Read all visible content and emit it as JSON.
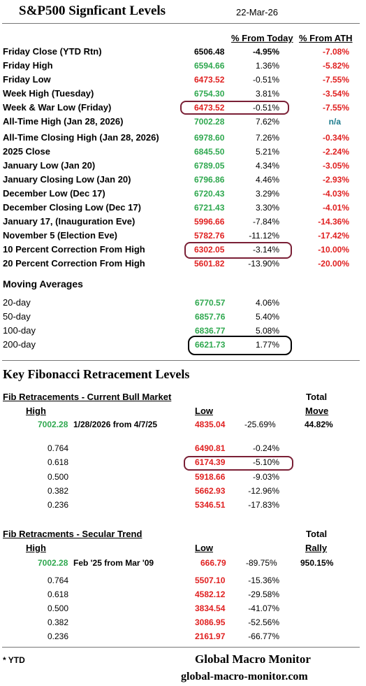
{
  "header": {
    "title": "S&P500 Signficant Levels",
    "date": "22-Mar-26",
    "col_today": "% From Today",
    "col_ath": "% From ATH"
  },
  "levels": [
    {
      "label": "Friday Close (YTD Rtn)",
      "value": "6506.48",
      "today": "-4.95%",
      "ath": "-7.08%",
      "vc": "k",
      "tc": "k",
      "ac": "r",
      "tb": true
    },
    {
      "label": "Friday High",
      "value": "6594.66",
      "today": "1.36%",
      "ath": "-5.82%",
      "vc": "g",
      "tc": "k",
      "ac": "r",
      "tb": false
    },
    {
      "label": "Friday Low",
      "value": "6473.52",
      "today": "-0.51%",
      "ath": "-7.55%",
      "vc": "r",
      "tc": "k",
      "ac": "r",
      "tb": false
    },
    {
      "label": "Week High (Tuesday)",
      "value": "6754.30",
      "today": "3.81%",
      "ath": "-3.54%",
      "vc": "g",
      "tc": "k",
      "ac": "r",
      "tb": false
    },
    {
      "label": "Week & War Low (Friday)",
      "value": "6473.52",
      "today": "-0.51%",
      "ath": "-7.55%",
      "vc": "r",
      "tc": "k",
      "ac": "r",
      "tb": false
    },
    {
      "label": "All-Time High (Jan 28, 2026)",
      "value": "7002.28",
      "today": "7.62%",
      "ath": "n/a",
      "vc": "g",
      "tc": "k",
      "ac": "teal",
      "tb": false
    },
    {
      "label": "All-Time Closing High (Jan 28, 2026)",
      "value": "6978.60",
      "today": "7.26%",
      "ath": "-0.34%",
      "vc": "g",
      "tc": "k",
      "ac": "r",
      "tb": false
    },
    {
      "label": "2025 Close",
      "value": "6845.50",
      "today": "5.21%",
      "ath": "-2.24%",
      "vc": "g",
      "tc": "k",
      "ac": "r",
      "tb": false
    },
    {
      "label": "January Low (Jan 20)",
      "value": "6789.05",
      "today": "4.34%",
      "ath": "-3.05%",
      "vc": "g",
      "tc": "k",
      "ac": "r",
      "tb": false
    },
    {
      "label": "January Closing Low (Jan 20)",
      "value": "6796.86",
      "today": "4.46%",
      "ath": "-2.93%",
      "vc": "g",
      "tc": "k",
      "ac": "r",
      "tb": false
    },
    {
      "label": "December Low (Dec 17)",
      "value": "6720.43",
      "today": "3.29%",
      "ath": "-4.03%",
      "vc": "g",
      "tc": "k",
      "ac": "r",
      "tb": false
    },
    {
      "label": "December Closing Low (Dec 17)",
      "value": "6721.43",
      "today": "3.30%",
      "ath": "-4.01%",
      "vc": "g",
      "tc": "k",
      "ac": "r",
      "tb": false
    },
    {
      "label": "January 17, (Inauguration Eve)",
      "value": "5996.66",
      "today": "-7.84%",
      "ath": "-14.36%",
      "vc": "r",
      "tc": "k",
      "ac": "r",
      "tb": false
    },
    {
      "label": "November 5 (Election Eve)",
      "value": "5782.76",
      "today": "-11.12%",
      "ath": "-17.42%",
      "vc": "r",
      "tc": "k",
      "ac": "r",
      "tb": false
    },
    {
      "label": "10 Percent Correction From High",
      "value": "6302.05",
      "today": "-3.14%",
      "ath": "-10.00%",
      "vc": "r",
      "tc": "k",
      "ac": "r",
      "tb": false
    },
    {
      "label": "20 Percent Correction From High",
      "value": "5601.82",
      "today": "-13.90%",
      "ath": "-20.00%",
      "vc": "r",
      "tc": "k",
      "ac": "r",
      "tb": false
    }
  ],
  "ma": {
    "title": "Moving Averages",
    "rows": [
      {
        "label": "20-day",
        "value": "6770.57",
        "today": "4.06%"
      },
      {
        "label": "50-day",
        "value": "6857.76",
        "today": "5.40%"
      },
      {
        "label": "100-day",
        "value": "6836.77",
        "today": "5.08%"
      },
      {
        "label": "200-day",
        "value": "6621.73",
        "today": "1.77%"
      }
    ]
  },
  "fib_title": "Key Fibonacci Retracement Levels",
  "fib1": {
    "title": "Fib Retracements - Current Bull Market",
    "col_high": "High",
    "col_low": "Low",
    "col_total1": "Total",
    "col_total2": "Move",
    "high": "7002.28",
    "desc": "1/28/2026 from 4/7/25",
    "low": "4835.04",
    "pct": "-25.69%",
    "total": "44.82%",
    "rows": [
      {
        "ratio": "0.764",
        "value": "6490.81",
        "pct": "-0.24%"
      },
      {
        "ratio": "0.618",
        "value": "6174.39",
        "pct": "-5.10%"
      },
      {
        "ratio": "0.500",
        "value": "5918.66",
        "pct": "-9.03%"
      },
      {
        "ratio": "0.382",
        "value": "5662.93",
        "pct": "-12.96%"
      },
      {
        "ratio": "0.236",
        "value": "5346.51",
        "pct": "-17.83%"
      }
    ]
  },
  "fib2": {
    "title": "Fib Retracments - Secular Trend",
    "col_high": "High",
    "col_low": "Low",
    "col_total1": "Total",
    "col_total2": "Rally",
    "high": "7002.28",
    "desc": "Feb '25 from Mar '09",
    "low": "666.79",
    "pct": "-89.75%",
    "total": "950.15%",
    "rows": [
      {
        "ratio": "0.764",
        "value": "5507.10",
        "pct": "-15.36%"
      },
      {
        "ratio": "0.618",
        "value": "4582.12",
        "pct": "-29.58%"
      },
      {
        "ratio": "0.500",
        "value": "3834.54",
        "pct": "-41.07%"
      },
      {
        "ratio": "0.382",
        "value": "3086.95",
        "pct": "-52.56%"
      },
      {
        "ratio": "0.236",
        "value": "2161.97",
        "pct": "-66.77%"
      }
    ]
  },
  "footer": {
    "note": "* YTD",
    "brand": "Global Macro Monitor",
    "site": "global-macro-monitor.com"
  },
  "colors": {
    "green": "#2fa84f",
    "red": "#e02020",
    "teal": "#1b7a8c",
    "oval": "#7a1f35"
  }
}
